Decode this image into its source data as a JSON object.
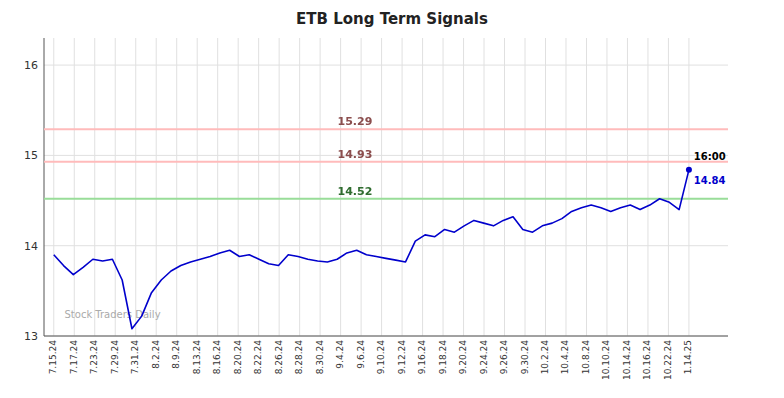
{
  "chart_data": {
    "type": "line",
    "title": "ETB Long Term Signals",
    "color": "#0000cc",
    "values": [
      13.9,
      13.78,
      13.68,
      13.76,
      13.85,
      13.83,
      13.85,
      13.62,
      13.08,
      13.22,
      13.48,
      13.62,
      13.72,
      13.78,
      13.82,
      13.85,
      13.88,
      13.92,
      13.95,
      13.88,
      13.9,
      13.85,
      13.8,
      13.78,
      13.9,
      13.88,
      13.85,
      13.83,
      13.82,
      13.85,
      13.92,
      13.95,
      13.9,
      13.88,
      13.86,
      13.84,
      13.82,
      14.05,
      14.12,
      14.1,
      14.18,
      14.15,
      14.22,
      14.28,
      14.25,
      14.22,
      14.28,
      14.32,
      14.18,
      14.15,
      14.22,
      14.25,
      14.3,
      14.38,
      14.42,
      14.45,
      14.42,
      14.38,
      14.42,
      14.45,
      14.4,
      14.45,
      14.52,
      14.48,
      14.4,
      14.84
    ],
    "value_labels": [
      null,
      null,
      null,
      null,
      null,
      null,
      null,
      null,
      null,
      null,
      null,
      null,
      null,
      null,
      null,
      null,
      null,
      null,
      null,
      null,
      null,
      null,
      null,
      null,
      null,
      null,
      null,
      null,
      null,
      null,
      null,
      null,
      null,
      null,
      null,
      null,
      null,
      null,
      null,
      null,
      null,
      null,
      null,
      null,
      null,
      null,
      null,
      null,
      null,
      null,
      null,
      null,
      null,
      null,
      null,
      null,
      null,
      null,
      null,
      null,
      null,
      null,
      null,
      null,
      null,
      "14.84"
    ],
    "annotations": [
      "16:00"
    ],
    "watermark": "Stock Traders Daily",
    "hlines": [
      {
        "value": 15.29,
        "label": "15.29",
        "color": "#ffbbbb"
      },
      {
        "value": 14.93,
        "label": "14.93",
        "color": "#ffbbbb"
      },
      {
        "value": 14.52,
        "label": "14.52",
        "color": "#99dd99"
      }
    ],
    "xlim": [
      -1,
      69
    ],
    "xticks": [
      {
        "value": 0,
        "label": "7.15.24"
      },
      {
        "value": 2.0968,
        "label": "7.17.24"
      },
      {
        "value": 4.1935,
        "label": "7.23.24"
      },
      {
        "value": 6.2903,
        "label": "7.29.24"
      },
      {
        "value": 8.3871,
        "label": "7.31.24"
      },
      {
        "value": 10.4839,
        "label": "8.2.24"
      },
      {
        "value": 12.5806,
        "label": "8.9.24"
      },
      {
        "value": 14.6774,
        "label": "8.13.24"
      },
      {
        "value": 16.7742,
        "label": "8.16.24"
      },
      {
        "value": 18.871,
        "label": "8.20.24"
      },
      {
        "value": 20.9677,
        "label": "8.22.24"
      },
      {
        "value": 23.0645,
        "label": "8.26.24"
      },
      {
        "value": 25.1613,
        "label": "8.28.24"
      },
      {
        "value": 27.2581,
        "label": "8.30.24"
      },
      {
        "value": 29.3548,
        "label": "9.4.24"
      },
      {
        "value": 31.4516,
        "label": "9.6.24"
      },
      {
        "value": 33.5484,
        "label": "9.10.24"
      },
      {
        "value": 35.6452,
        "label": "9.12.24"
      },
      {
        "value": 37.7419,
        "label": "9.16.24"
      },
      {
        "value": 39.8387,
        "label": "9.18.24"
      },
      {
        "value": 41.9355,
        "label": "9.20.24"
      },
      {
        "value": 44.0323,
        "label": "9.24.24"
      },
      {
        "value": 46.129,
        "label": "9.26.24"
      },
      {
        "value": 48.2258,
        "label": "9.30.24"
      },
      {
        "value": 50.3226,
        "label": "10.2.24"
      },
      {
        "value": 52.4194,
        "label": "10.4.24"
      },
      {
        "value": 54.5161,
        "label": "10.8.24"
      },
      {
        "value": 56.6129,
        "label": "10.10.24"
      },
      {
        "value": 58.7097,
        "label": "10.14.24"
      },
      {
        "value": 60.8065,
        "label": "10.16.24"
      },
      {
        "value": 62.9032,
        "label": "10.22.24"
      },
      {
        "value": 65,
        "label": "1.14.25"
      }
    ],
    "ylim": [
      13.0,
      16.3
    ],
    "yticks": [
      13,
      14,
      15,
      16
    ],
    "grid": true
  }
}
